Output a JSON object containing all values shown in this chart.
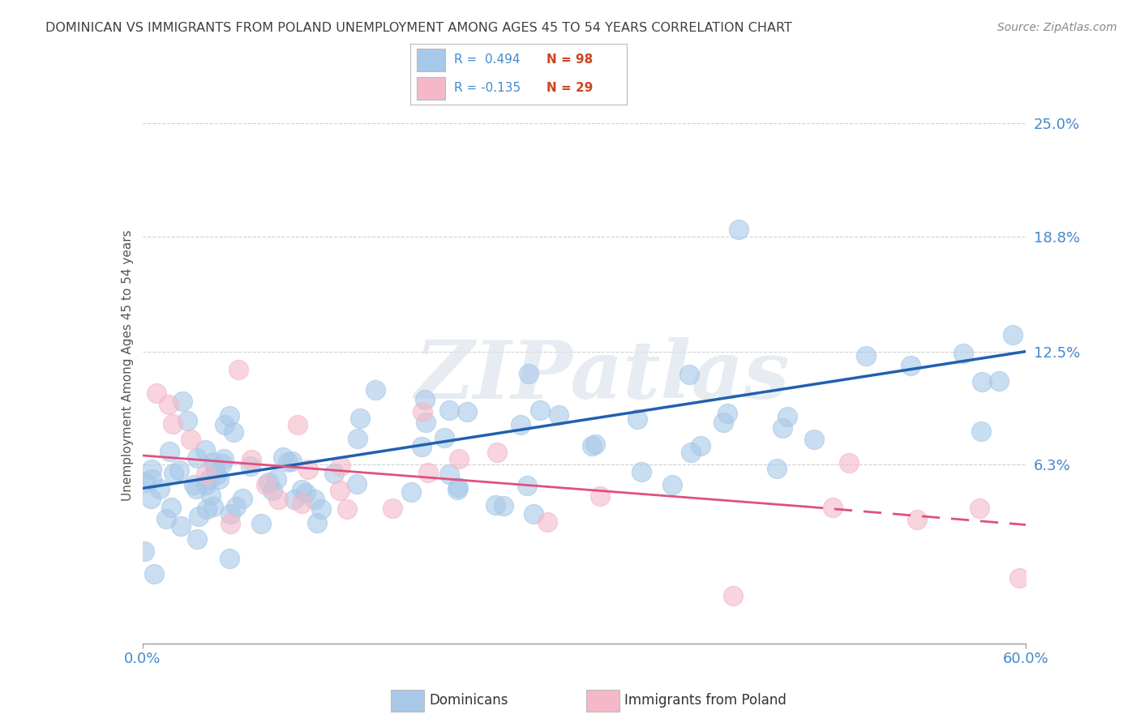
{
  "title": "DOMINICAN VS IMMIGRANTS FROM POLAND UNEMPLOYMENT AMONG AGES 45 TO 54 YEARS CORRELATION CHART",
  "source": "Source: ZipAtlas.com",
  "ylabel": "Unemployment Among Ages 45 to 54 years",
  "xmin": 0.0,
  "xmax": 0.6,
  "ymin": -0.035,
  "ymax": 0.27,
  "xtick_labels": [
    "0.0%",
    "60.0%"
  ],
  "ytick_labels_right": [
    "25.0%",
    "18.8%",
    "12.5%",
    "6.3%"
  ],
  "ytick_vals_right": [
    0.25,
    0.188,
    0.125,
    0.063
  ],
  "watermark": "ZIPatlas",
  "dominican_color": "#a8c8e8",
  "poland_color": "#f4b8c8",
  "trend1_color": "#2060b0",
  "trend2_color": "#e05080",
  "background_color": "#ffffff",
  "grid_color": "#d0d0d0",
  "title_color": "#404040",
  "right_label_color": "#4488cc",
  "bottom_label_color": "#4488cc",
  "legend_r1_color": "#4488cc",
  "legend_n1_color": "#cc4422",
  "legend_r2_color": "#4488cc",
  "legend_n2_color": "#cc4422"
}
